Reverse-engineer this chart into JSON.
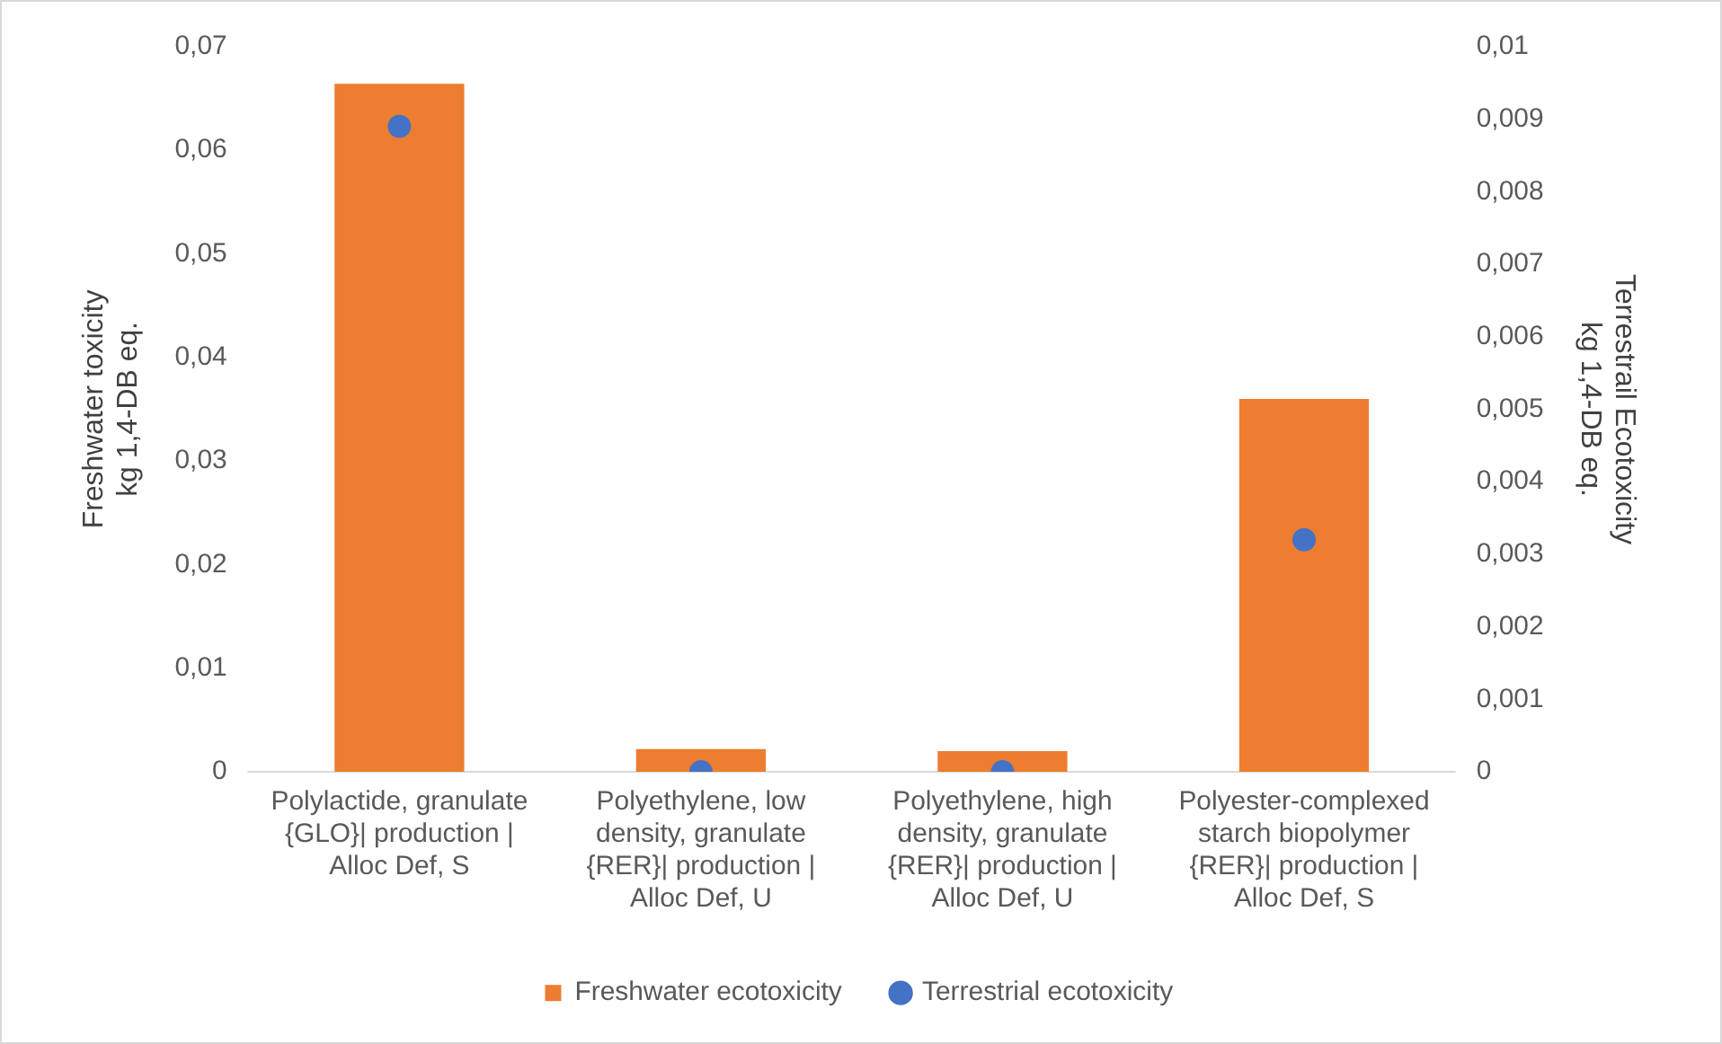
{
  "chart_data": {
    "type": "bar",
    "categories": [
      "Polylactide, granulate\n{GLO}| production |\nAlloc Def, S",
      "Polyethylene, low\ndensity, granulate\n{RER}| production |\nAlloc Def, U",
      "Polyethylene, high\ndensity, granulate\n{RER}| production |\nAlloc Def, U",
      "Polyester-complexed\nstarch biopolymer\n{RER}| production |\nAlloc Def, S"
    ],
    "series": [
      {
        "name": "Freshwater ecotoxicity",
        "color": "#ed7d31",
        "values": [
          0.0664,
          0.0022,
          0.002,
          0.036
        ]
      },
      {
        "name": "Terrestrial ecotoxicity",
        "type": "scatter",
        "axis": "y2",
        "color": "#4472c4",
        "x": [
          "Polylactide, granulate\n{GLO}| production |\nAlloc Def, S",
          "Polyethylene, low\ndensity, granulate\n{RER}| production |\nAlloc Def, U",
          "Polyethylene, high\ndensity, granulate\n{RER}| production |\nAlloc Def, U",
          "Polyester-complexed\nstarch biopolymer\n{RER}| production |\nAlloc Def, S"
        ],
        "values": [
          0.0089,
          0,
          0,
          0.0032
        ]
      }
    ],
    "ylabel": "Freshwater toxicity\nkg 1,4-DB eq.",
    "y2label": "Terrestrail Ecotoxicity\nkg 1,4-DB eq.",
    "ylim": [
      0,
      0.07
    ],
    "yticks": [
      {
        "value": 0,
        "label": "0"
      },
      {
        "value": 0.01,
        "label": "0,01"
      },
      {
        "value": 0.02,
        "label": "0,02"
      },
      {
        "value": 0.03,
        "label": "0,03"
      },
      {
        "value": 0.04,
        "label": "0,04"
      },
      {
        "value": 0.05,
        "label": "0,05"
      },
      {
        "value": 0.06,
        "label": "0,06"
      },
      {
        "value": 0.07,
        "label": "0,07"
      }
    ],
    "y2lim": [
      0,
      0.01
    ],
    "y2ticks": [
      {
        "value": 0,
        "label": "0"
      },
      {
        "value": 0.001,
        "label": "0,001"
      },
      {
        "value": 0.002,
        "label": "0,002"
      },
      {
        "value": 0.003,
        "label": "0,003"
      },
      {
        "value": 0.004,
        "label": "0,004"
      },
      {
        "value": 0.005,
        "label": "0,005"
      },
      {
        "value": 0.006,
        "label": "0,006"
      },
      {
        "value": 0.007,
        "label": "0,007"
      },
      {
        "value": 0.008,
        "label": "0,008"
      },
      {
        "value": 0.009,
        "label": "0,009"
      },
      {
        "value": 0.01,
        "label": "0,01"
      }
    ],
    "grid": false,
    "legend": "bottom",
    "marker": "circle"
  }
}
